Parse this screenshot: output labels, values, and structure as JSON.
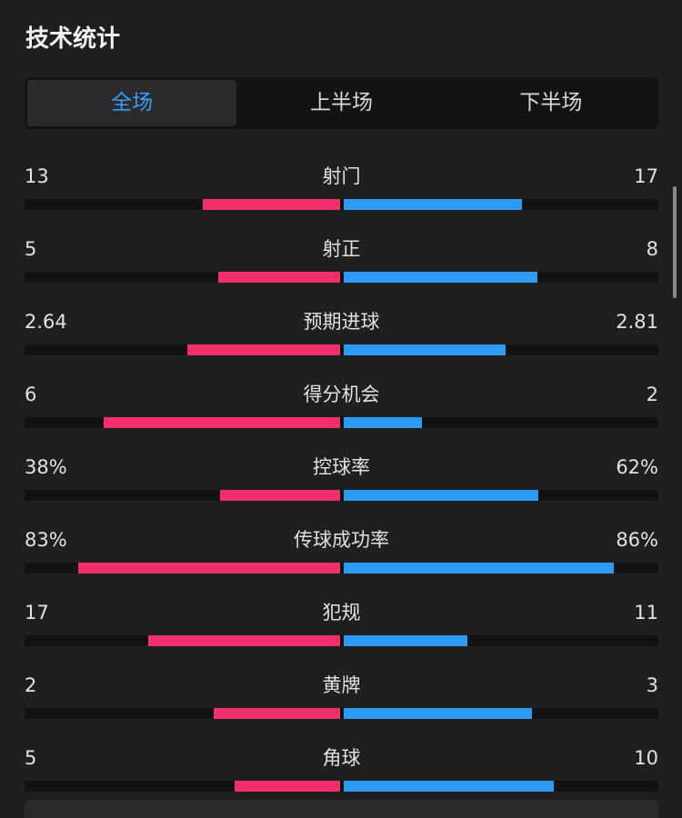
{
  "header": {
    "title": "技术统计"
  },
  "tabs": {
    "items": [
      "全场",
      "上半场",
      "下半场"
    ],
    "active": 0
  },
  "stats": {
    "rows": [
      {
        "name": "射门",
        "home": 13,
        "away": 17
      },
      {
        "name": "射正",
        "home": 5,
        "away": 8
      },
      {
        "name": "预期进球",
        "home": 2.64,
        "away": 2.81
      },
      {
        "name": "得分机会",
        "home": 6,
        "away": 2
      },
      {
        "name": "控球率",
        "home": 38,
        "away": 62,
        "home_label": "38%",
        "away_label": "62%"
      },
      {
        "name": "传球成功率",
        "home": 83,
        "away": 86,
        "home_label": "83%",
        "away_label": "86%"
      },
      {
        "name": "犯规",
        "home": 17,
        "away": 11
      },
      {
        "name": "黄牌",
        "home": 2,
        "away": 3
      },
      {
        "name": "角球",
        "home": 5,
        "away": 10
      }
    ],
    "home_color": "#f1306b",
    "away_color": "#2f9bf5"
  }
}
